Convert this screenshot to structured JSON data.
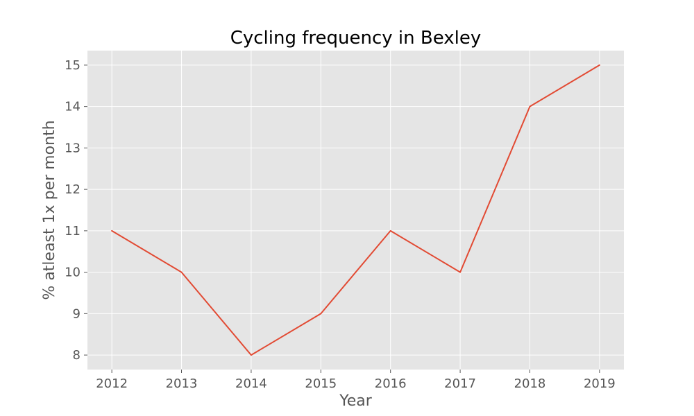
{
  "chart_data": {
    "type": "line",
    "title": "Cycling frequency in Bexley",
    "xlabel": "Year",
    "ylabel": "% atleast 1x per month",
    "x": [
      2012,
      2013,
      2014,
      2015,
      2016,
      2017,
      2018,
      2019
    ],
    "series": [
      {
        "values": [
          11,
          10,
          8,
          9,
          11,
          10,
          14,
          15
        ],
        "color": "#E24A33"
      }
    ],
    "x_ticks": [
      "2012",
      "2013",
      "2014",
      "2015",
      "2016",
      "2017",
      "2018",
      "2019"
    ],
    "y_ticks": [
      "8",
      "9",
      "10",
      "11",
      "12",
      "13",
      "14",
      "15"
    ],
    "xlim": [
      2011.65,
      2019.35
    ],
    "ylim": [
      7.65,
      15.35
    ],
    "grid": true,
    "style": {
      "plot_background": "#E5E5E5",
      "grid_color": "#FFFFFF",
      "tick_label_color": "#555555",
      "title_color": "#000000"
    }
  }
}
